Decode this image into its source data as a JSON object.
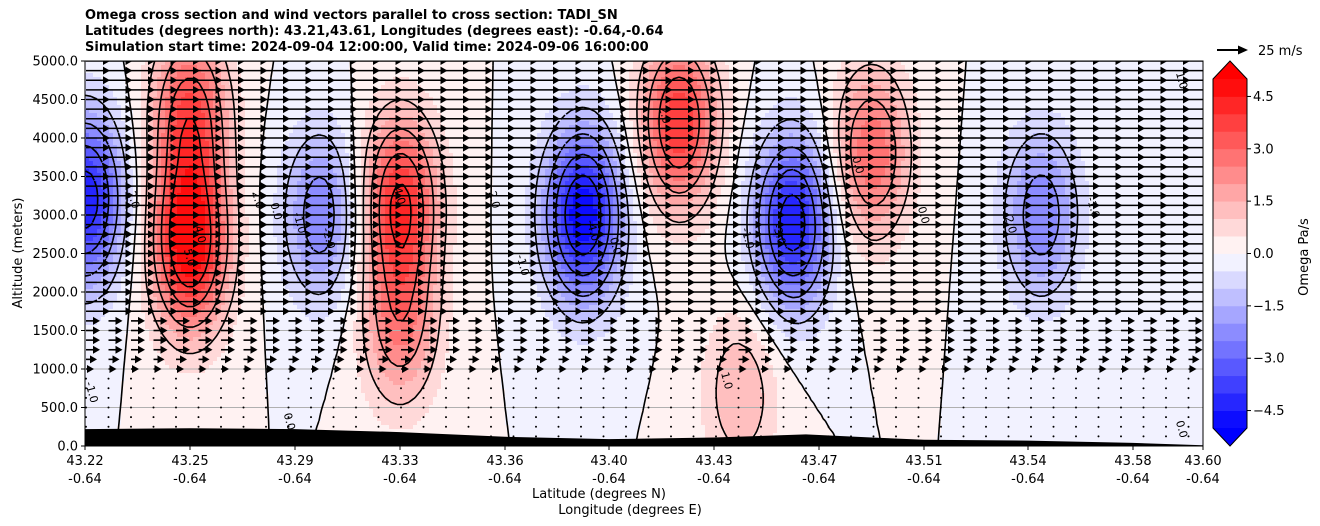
{
  "chart_data": {
    "type": "heatmap",
    "title_lines": [
      "Omega cross section and wind vectors parallel to cross section: TADI_SN",
      "Latitudes (degrees north): 43.21,43.61, Longitudes (degrees east): -0.64,-0.64",
      "Simulation start time: 2024-09-04 12:00:00, Valid time: 2024-09-06 16:00:00"
    ],
    "ylabel": "Altitude (meters)",
    "xlabel_lat": "Latitude (degrees N)",
    "xlabel_lon": "Longitude (degrees E)",
    "ylim": [
      0,
      5000
    ],
    "yticks": [
      "0.0",
      "500.0",
      "1000.0",
      "1500.0",
      "2000.0",
      "2500.0",
      "3000.0",
      "3500.0",
      "4000.0",
      "4500.0",
      "5000.0"
    ],
    "xticks_lat": [
      "43.22",
      "43.25",
      "43.29",
      "43.33",
      "43.36",
      "43.40",
      "43.43",
      "43.47",
      "43.51",
      "43.54",
      "43.58",
      "43.60"
    ],
    "xticks_lon": [
      "-0.64",
      "-0.64",
      "-0.64",
      "-0.64",
      "-0.64",
      "-0.64",
      "-0.64",
      "-0.64",
      "-0.64",
      "-0.64",
      "-0.64",
      "-0.64"
    ],
    "grid": "horizontal",
    "colorbar": {
      "label": "Omega Pa/s",
      "range": [
        -5.0,
        5.0
      ],
      "step": 0.5,
      "ticks": [
        "−4.5",
        "−3.0",
        "−1.5",
        "0.0",
        "1.5",
        "3.0",
        "4.5"
      ],
      "colormap": "bwr",
      "extend": "both"
    },
    "quiver_key": "25 m/s",
    "contour_labels": [
      "1.0",
      "2.0",
      "3.0",
      "4.0",
      "5.0",
      "0.0",
      "-1.0",
      "-2.0",
      "-3.0",
      "-4.0"
    ],
    "cells": [
      {
        "lat": 43.22,
        "alt": 3200,
        "omega": -4.5
      },
      {
        "lat": 43.25,
        "alt": 2600,
        "omega": 5.0
      },
      {
        "lat": 43.25,
        "alt": 4300,
        "omega": 3.5
      },
      {
        "lat": 43.3,
        "alt": 3000,
        "omega": -2.5
      },
      {
        "lat": 43.33,
        "alt": 3200,
        "omega": 4.0
      },
      {
        "lat": 43.33,
        "alt": 1600,
        "omega": 2.5
      },
      {
        "lat": 43.39,
        "alt": 3000,
        "omega": -5.0
      },
      {
        "lat": 43.42,
        "alt": 4200,
        "omega": 4.0
      },
      {
        "lat": 43.46,
        "alt": 2900,
        "omega": -4.5
      },
      {
        "lat": 43.49,
        "alt": 3800,
        "omega": 3.0
      },
      {
        "lat": 43.545,
        "alt": 3000,
        "omega": -2.5
      },
      {
        "lat": 43.44,
        "alt": 700,
        "omega": 1.5
      }
    ],
    "wind": "uniform southward-to-northward flow, strong aloft (about 25 m/s) weakening below 1000 m"
  }
}
